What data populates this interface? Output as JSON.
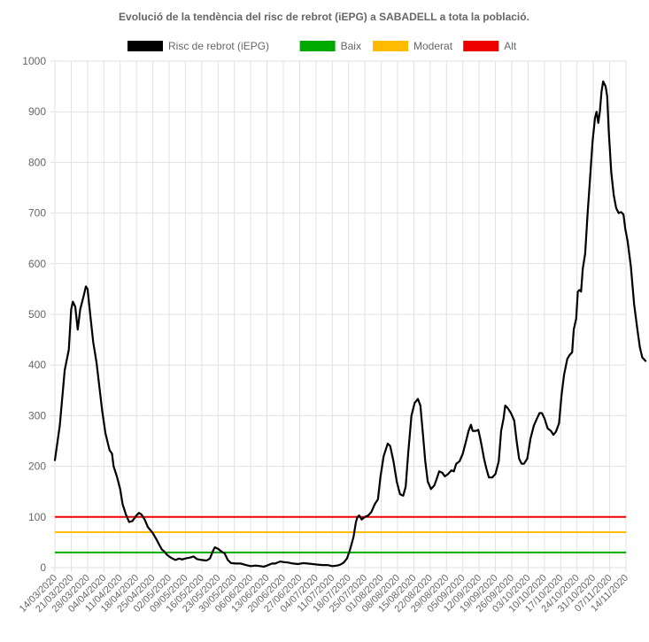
{
  "chart_data": {
    "type": "line",
    "title": "Evolució de la tendència del risc de rebrot (iEPG) a SABADELL a tota la població.",
    "xlabel": "",
    "ylabel": "",
    "ylim": [
      0,
      1000
    ],
    "yticks": [
      0,
      100,
      200,
      300,
      400,
      500,
      600,
      700,
      800,
      900,
      1000
    ],
    "grid": true,
    "legend_position": "top",
    "categories": [
      "14/03/2020",
      "21/03/2020",
      "28/03/2020",
      "04/04/2020",
      "11/04/2020",
      "18/04/2020",
      "25/04/2020",
      "02/05/2020",
      "09/05/2020",
      "16/05/2020",
      "23/05/2020",
      "30/05/2020",
      "06/06/2020",
      "13/06/2020",
      "20/06/2020",
      "27/06/2020",
      "04/07/2020",
      "11/07/2020",
      "18/07/2020",
      "25/07/2020",
      "01/08/2020",
      "08/08/2020",
      "15/08/2020",
      "22/08/2020",
      "29/08/2020",
      "05/09/2020",
      "12/09/2020",
      "19/09/2020",
      "26/09/2020",
      "03/10/2020",
      "10/10/2020",
      "17/10/2020",
      "24/10/2020",
      "31/10/2020",
      "07/11/2020",
      "14/11/2020"
    ],
    "series": [
      {
        "name": "Risc de rebrot (iEPG)",
        "color": "#000000",
        "points": [
          [
            0,
            212
          ],
          [
            0.3,
            280
          ],
          [
            0.6,
            390
          ],
          [
            0.85,
            430
          ],
          [
            1.0,
            510
          ],
          [
            1.1,
            525
          ],
          [
            1.25,
            515
          ],
          [
            1.4,
            470
          ],
          [
            1.55,
            510
          ],
          [
            1.75,
            535
          ],
          [
            1.9,
            555
          ],
          [
            2.0,
            550
          ],
          [
            2.2,
            490
          ],
          [
            2.35,
            445
          ],
          [
            2.55,
            405
          ],
          [
            2.75,
            350
          ],
          [
            2.9,
            310
          ],
          [
            3.1,
            265
          ],
          [
            3.35,
            232
          ],
          [
            3.5,
            225
          ],
          [
            3.6,
            200
          ],
          [
            3.8,
            180
          ],
          [
            4.0,
            155
          ],
          [
            4.15,
            125
          ],
          [
            4.35,
            105
          ],
          [
            4.55,
            90
          ],
          [
            4.75,
            92
          ],
          [
            5.0,
            103
          ],
          [
            5.15,
            108
          ],
          [
            5.3,
            105
          ],
          [
            5.5,
            95
          ],
          [
            5.7,
            80
          ],
          [
            6.0,
            68
          ],
          [
            6.2,
            57
          ],
          [
            6.4,
            45
          ],
          [
            6.55,
            36
          ],
          [
            6.7,
            32
          ],
          [
            6.85,
            26
          ],
          [
            7.0,
            22
          ],
          [
            7.2,
            18
          ],
          [
            7.4,
            15
          ],
          [
            7.6,
            18
          ],
          [
            7.8,
            16
          ],
          [
            8.0,
            18
          ],
          [
            8.3,
            20
          ],
          [
            8.5,
            22
          ],
          [
            8.7,
            17
          ],
          [
            9.0,
            15
          ],
          [
            9.3,
            14
          ],
          [
            9.5,
            18
          ],
          [
            9.7,
            34
          ],
          [
            9.8,
            40
          ],
          [
            10.0,
            37
          ],
          [
            10.2,
            32
          ],
          [
            10.4,
            28
          ],
          [
            10.6,
            15
          ],
          [
            10.8,
            9
          ],
          [
            11.1,
            8
          ],
          [
            11.4,
            8
          ],
          [
            11.7,
            5
          ],
          [
            12.0,
            3
          ],
          [
            12.3,
            4
          ],
          [
            12.6,
            3
          ],
          [
            12.8,
            2
          ],
          [
            13.0,
            4
          ],
          [
            13.3,
            8
          ],
          [
            13.5,
            8
          ],
          [
            13.8,
            12
          ],
          [
            14.0,
            11
          ],
          [
            14.3,
            10
          ],
          [
            14.6,
            8
          ],
          [
            14.9,
            7
          ],
          [
            15.2,
            9
          ],
          [
            15.5,
            8
          ],
          [
            15.8,
            7
          ],
          [
            16.1,
            6
          ],
          [
            16.4,
            5
          ],
          [
            16.7,
            5
          ],
          [
            17.0,
            3
          ],
          [
            17.3,
            4
          ],
          [
            17.5,
            6
          ],
          [
            17.7,
            10
          ],
          [
            17.9,
            18
          ],
          [
            18.1,
            37
          ],
          [
            18.3,
            60
          ],
          [
            18.45,
            90
          ],
          [
            18.55,
            100
          ],
          [
            18.65,
            103
          ],
          [
            18.8,
            95
          ],
          [
            19.0,
            100
          ],
          [
            19.2,
            103
          ],
          [
            19.4,
            110
          ],
          [
            19.6,
            125
          ],
          [
            19.8,
            135
          ],
          [
            19.95,
            178
          ],
          [
            20.15,
            220
          ],
          [
            20.4,
            245
          ],
          [
            20.55,
            240
          ],
          [
            20.75,
            210
          ],
          [
            20.95,
            170
          ],
          [
            21.15,
            145
          ],
          [
            21.35,
            142
          ],
          [
            21.5,
            160
          ],
          [
            21.65,
            225
          ],
          [
            21.85,
            300
          ],
          [
            22.05,
            325
          ],
          [
            22.25,
            333
          ],
          [
            22.4,
            320
          ],
          [
            22.55,
            265
          ],
          [
            22.7,
            210
          ],
          [
            22.85,
            170
          ],
          [
            23.05,
            155
          ],
          [
            23.25,
            162
          ],
          [
            23.4,
            175
          ],
          [
            23.55,
            190
          ],
          [
            23.75,
            187
          ],
          [
            23.9,
            180
          ],
          [
            24.1,
            185
          ],
          [
            24.3,
            192
          ],
          [
            24.45,
            190
          ],
          [
            24.6,
            205
          ],
          [
            24.8,
            210
          ],
          [
            25.0,
            225
          ],
          [
            25.2,
            250
          ],
          [
            25.35,
            270
          ],
          [
            25.5,
            282
          ],
          [
            25.6,
            270
          ],
          [
            25.8,
            270
          ],
          [
            25.95,
            272
          ],
          [
            26.1,
            250
          ],
          [
            26.3,
            215
          ],
          [
            26.45,
            195
          ],
          [
            26.6,
            178
          ],
          [
            26.8,
            178
          ],
          [
            27.0,
            185
          ],
          [
            27.2,
            210
          ],
          [
            27.35,
            270
          ],
          [
            27.5,
            295
          ],
          [
            27.6,
            320
          ],
          [
            27.75,
            315
          ],
          [
            27.95,
            305
          ],
          [
            28.15,
            290
          ],
          [
            28.3,
            250
          ],
          [
            28.45,
            215
          ],
          [
            28.6,
            205
          ],
          [
            28.75,
            205
          ],
          [
            28.95,
            215
          ],
          [
            29.15,
            255
          ],
          [
            29.35,
            280
          ],
          [
            29.55,
            295
          ],
          [
            29.7,
            305
          ],
          [
            29.85,
            305
          ],
          [
            30.0,
            295
          ],
          [
            30.2,
            275
          ],
          [
            30.4,
            270
          ],
          [
            30.55,
            262
          ],
          [
            30.7,
            268
          ],
          [
            30.9,
            285
          ],
          [
            31.05,
            340
          ],
          [
            31.2,
            380
          ],
          [
            31.4,
            412
          ],
          [
            31.55,
            420
          ],
          [
            31.7,
            425
          ],
          [
            31.8,
            470
          ],
          [
            31.95,
            492
          ],
          [
            32.05,
            545
          ],
          [
            32.15,
            548
          ],
          [
            32.25,
            545
          ],
          [
            32.35,
            590
          ],
          [
            32.5,
            620
          ],
          [
            32.65,
            700
          ],
          [
            32.8,
            770
          ],
          [
            32.95,
            840
          ],
          [
            33.1,
            888
          ],
          [
            33.2,
            900
          ],
          [
            33.3,
            878
          ],
          [
            33.4,
            900
          ],
          [
            33.5,
            940
          ],
          [
            33.6,
            960
          ],
          [
            33.75,
            950
          ],
          [
            33.85,
            930
          ],
          [
            33.95,
            860
          ],
          [
            34.1,
            780
          ],
          [
            34.25,
            735
          ],
          [
            34.4,
            710
          ],
          [
            34.55,
            700
          ],
          [
            34.7,
            702
          ],
          [
            34.85,
            697
          ],
          [
            34.95,
            670
          ],
          [
            35.1,
            645
          ],
          [
            35.3,
            595
          ],
          [
            35.5,
            520
          ],
          [
            35.7,
            470
          ],
          [
            35.85,
            435
          ],
          [
            36.0,
            415
          ],
          [
            36.2,
            408
          ]
        ]
      },
      {
        "name": "Baix",
        "color": "#00AA00",
        "value": 30
      },
      {
        "name": "Moderat",
        "color": "#FFBB00",
        "value": 70
      },
      {
        "name": "Alt",
        "color": "#EE0000",
        "value": 100
      }
    ]
  }
}
